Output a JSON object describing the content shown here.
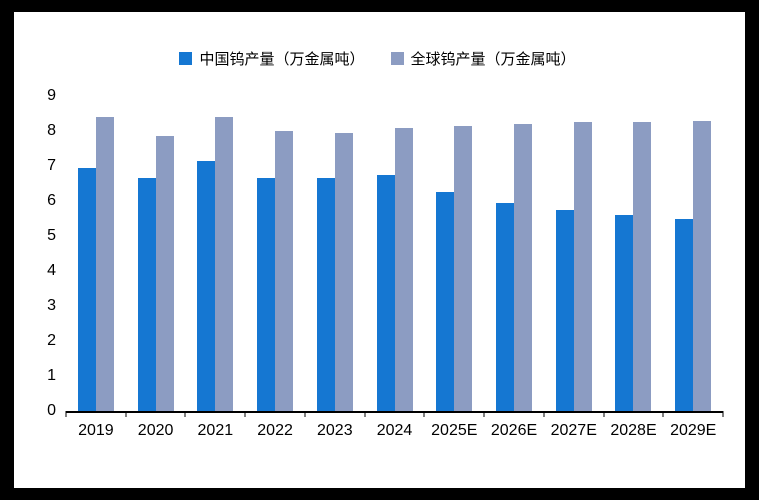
{
  "frame": {
    "border_color": "#000000",
    "panel_bg": "#ffffff"
  },
  "chart_data": {
    "type": "bar",
    "title": "",
    "categories": [
      "2019",
      "2020",
      "2021",
      "2022",
      "2023",
      "2024",
      "2025E",
      "2026E",
      "2027E",
      "2028E",
      "2029E"
    ],
    "series": [
      {
        "name": "中国钨产量（万金属吨）",
        "key": "china",
        "color": "#1577D2",
        "values": [
          6.95,
          6.65,
          7.15,
          6.65,
          6.65,
          6.75,
          6.25,
          5.95,
          5.75,
          5.6,
          5.5
        ]
      },
      {
        "name": "全球钨产量（万金属吨）",
        "key": "global",
        "color": "#8C9CC2",
        "values": [
          8.4,
          7.85,
          8.4,
          8.0,
          7.95,
          8.1,
          8.15,
          8.2,
          8.25,
          8.25,
          8.3
        ]
      }
    ],
    "xlabel": "",
    "ylabel": "",
    "ylim": [
      0,
      9
    ],
    "ytick_step": 1,
    "grid": false,
    "legend_position": "top"
  }
}
